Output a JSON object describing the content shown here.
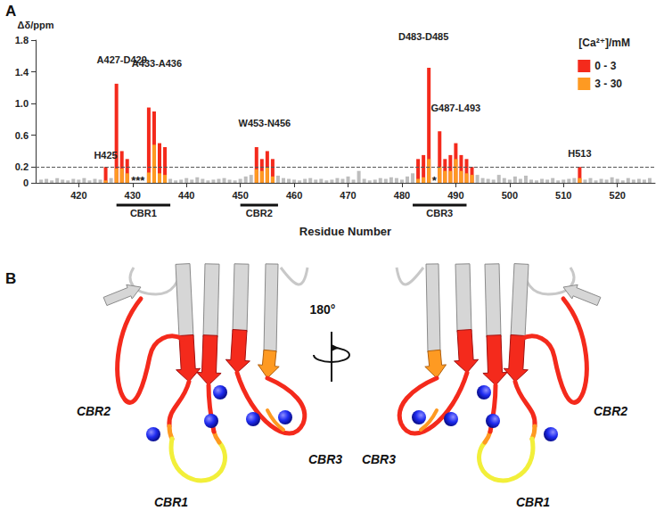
{
  "chart_data": {
    "type": "bar",
    "panel_label": "A",
    "y_label": "Δδ/ppm",
    "x_label": "Residue Number",
    "legend_title": "[Ca²⁺]/mM",
    "legend": "upper right",
    "stacked": true,
    "grid": false,
    "threshold": 0.2,
    "xlim": [
      412,
      527
    ],
    "xticks": [
      420,
      430,
      440,
      450,
      460,
      470,
      480,
      490,
      500,
      510,
      520
    ],
    "ylim": [
      0,
      1.8
    ],
    "yticks": [
      0,
      0.2,
      0.6,
      {
        "value": 1,
        "label": "1.0"
      },
      1.4,
      1.8
    ],
    "x": [
      413,
      414,
      415,
      416,
      417,
      418,
      419,
      420,
      421,
      422,
      423,
      424,
      425,
      426,
      427,
      428,
      429,
      430,
      431,
      432,
      433,
      434,
      435,
      436,
      437,
      438,
      439,
      440,
      441,
      442,
      443,
      444,
      445,
      446,
      447,
      448,
      449,
      450,
      451,
      452,
      453,
      454,
      455,
      456,
      457,
      458,
      459,
      460,
      461,
      462,
      463,
      464,
      465,
      466,
      467,
      468,
      469,
      470,
      471,
      472,
      473,
      474,
      475,
      476,
      477,
      478,
      479,
      480,
      481,
      482,
      483,
      484,
      485,
      486,
      487,
      488,
      489,
      490,
      491,
      492,
      493,
      494,
      495,
      496,
      497,
      498,
      499,
      500,
      501,
      502,
      503,
      504,
      505,
      506,
      507,
      508,
      509,
      510,
      511,
      512,
      513,
      514,
      515,
      516,
      517,
      518,
      519,
      520,
      521,
      522,
      523,
      524,
      525,
      526
    ],
    "series": [
      {
        "name": "0 - 3",
        "color": "#f42a1c",
        "values": [
          null,
          null,
          null,
          null,
          null,
          null,
          null,
          null,
          null,
          null,
          null,
          null,
          0.2,
          null,
          1.25,
          0.4,
          0.3,
          null,
          null,
          null,
          0.95,
          0.9,
          0.5,
          0.45,
          null,
          null,
          null,
          null,
          null,
          null,
          null,
          null,
          null,
          null,
          null,
          null,
          null,
          null,
          null,
          null,
          0.45,
          0.3,
          0.4,
          0.3,
          null,
          null,
          null,
          null,
          null,
          null,
          null,
          null,
          null,
          null,
          null,
          null,
          null,
          null,
          null,
          null,
          null,
          null,
          null,
          null,
          null,
          null,
          null,
          null,
          null,
          null,
          0.3,
          0.35,
          1.45,
          null,
          0.65,
          0.3,
          0.35,
          0.5,
          0.35,
          0.3,
          0.2,
          null,
          null,
          null,
          null,
          null,
          null,
          null,
          null,
          null,
          null,
          null,
          null,
          null,
          null,
          null,
          null,
          null,
          null,
          null,
          0.2,
          null,
          null,
          null,
          null,
          null,
          null,
          null,
          null,
          null,
          null,
          null,
          null,
          null
        ]
      },
      {
        "name": "3 - 30",
        "color": "#fe9a22",
        "values": [
          null,
          null,
          null,
          null,
          null,
          null,
          null,
          null,
          null,
          null,
          null,
          null,
          0.03,
          null,
          0.18,
          0.18,
          0.12,
          null,
          null,
          null,
          0.13,
          0.48,
          0.12,
          0.1,
          null,
          null,
          null,
          null,
          null,
          null,
          null,
          null,
          null,
          null,
          null,
          null,
          null,
          null,
          null,
          null,
          0.17,
          0.15,
          0.2,
          0.08,
          null,
          null,
          null,
          null,
          null,
          null,
          null,
          null,
          null,
          null,
          null,
          null,
          null,
          null,
          null,
          null,
          null,
          null,
          null,
          null,
          null,
          null,
          null,
          null,
          null,
          null,
          0.05,
          0.07,
          0.3,
          null,
          0.2,
          0.15,
          0.15,
          0.3,
          0.15,
          0.12,
          0.1,
          null,
          null,
          null,
          null,
          null,
          null,
          null,
          null,
          null,
          null,
          null,
          null,
          null,
          null,
          null,
          null,
          null,
          null,
          null,
          0.06,
          null,
          null,
          null,
          null,
          null,
          null,
          null,
          null,
          null,
          null,
          null,
          null,
          null
        ]
      },
      {
        "color": "#bdbdbd",
        "values": [
          0.04,
          0.05,
          0.03,
          0.06,
          0.04,
          0.03,
          0.05,
          0.04,
          0.06,
          0.03,
          0.05,
          0.04,
          null,
          0.06,
          null,
          null,
          null,
          null,
          null,
          null,
          null,
          null,
          null,
          null,
          0.05,
          0.03,
          0.04,
          0.06,
          0.04,
          0.07,
          0.05,
          0.03,
          0.04,
          0.05,
          0.06,
          0.04,
          0.03,
          0.05,
          0.08,
          0.1,
          null,
          null,
          null,
          null,
          0.09,
          0.06,
          0.05,
          0.04,
          0.03,
          0.05,
          0.06,
          0.04,
          0.05,
          0.03,
          0.04,
          0.06,
          0.05,
          0.08,
          0.04,
          0.15,
          0.05,
          0.03,
          0.04,
          0.06,
          0.05,
          0.07,
          0.06,
          0.04,
          0.08,
          0.12,
          null,
          null,
          null,
          null,
          null,
          null,
          null,
          null,
          null,
          null,
          null,
          0.1,
          0.06,
          0.05,
          0.04,
          0.1,
          0.06,
          0.04,
          0.08,
          0.05,
          0.09,
          0.04,
          0.03,
          0.05,
          0.04,
          0.06,
          0.03,
          0.04,
          0.05,
          0.06,
          null,
          0.04,
          0.06,
          0.03,
          0.05,
          0.04,
          0.07,
          0.05,
          0.03,
          0.06,
          0.04,
          0.05,
          0.04,
          0.06
        ]
      }
    ],
    "annotations": [
      {
        "text": "H425",
        "x": 425,
        "y": 0.28
      },
      {
        "text": "A427-D429",
        "x": 428,
        "y": 1.48
      },
      {
        "text": "A433-A436",
        "x": 434.5,
        "y": 1.43
      },
      {
        "text": "W453-N456",
        "x": 454.5,
        "y": 0.68
      },
      {
        "text": "D483-D485",
        "x": 484,
        "y": 1.77
      },
      {
        "text": "G487-L493",
        "x": 490,
        "y": 0.87
      },
      {
        "text": "H513",
        "x": 513,
        "y": 0.3
      },
      {
        "text": "***",
        "x": 431,
        "y": 0
      },
      {
        "text": "*",
        "x": 486,
        "y": 0
      }
    ],
    "regions": [
      {
        "label": "CBR1",
        "from": 427,
        "to": 437
      },
      {
        "label": "CBR2",
        "from": 450,
        "to": 457
      },
      {
        "label": "CBR3",
        "from": 482,
        "to": 492
      }
    ]
  },
  "structure": {
    "panel_label": "B",
    "rotation": "180°",
    "views": [
      [
        "CBR2",
        "CBR1",
        "CBR3"
      ],
      [
        "CBR3",
        "CBR1",
        "CBR2"
      ]
    ]
  }
}
